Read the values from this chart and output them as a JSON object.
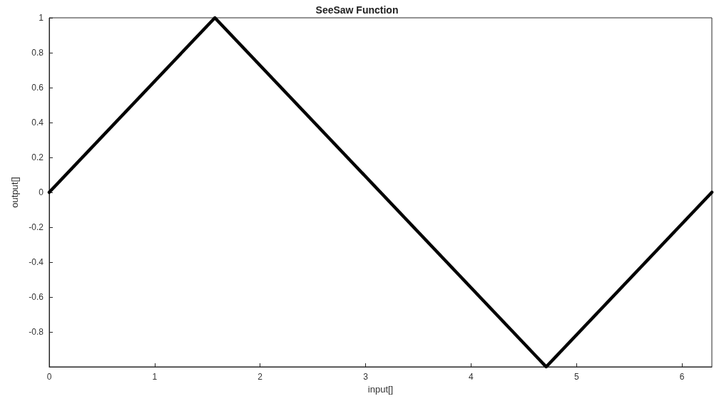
{
  "chart_data": {
    "type": "line",
    "title": "SeeSaw Function",
    "xlabel": "input[]",
    "ylabel": "output[]",
    "x": [
      0,
      1.5708,
      4.7124,
      6.2832
    ],
    "series": [
      {
        "color": "#000000",
        "values": [
          0,
          1,
          -1,
          0
        ]
      }
    ],
    "xlim": [
      0,
      6.2832
    ],
    "xticks": [
      0,
      1,
      2,
      3,
      4,
      5,
      6
    ],
    "ylim": [
      -1,
      1
    ],
    "yticks": [
      -0.8,
      -0.6,
      -0.4,
      -0.2,
      0,
      0.2,
      0.4,
      0.6,
      0.8,
      1
    ],
    "grid": false,
    "marker": "none",
    "line_style": "solid"
  }
}
